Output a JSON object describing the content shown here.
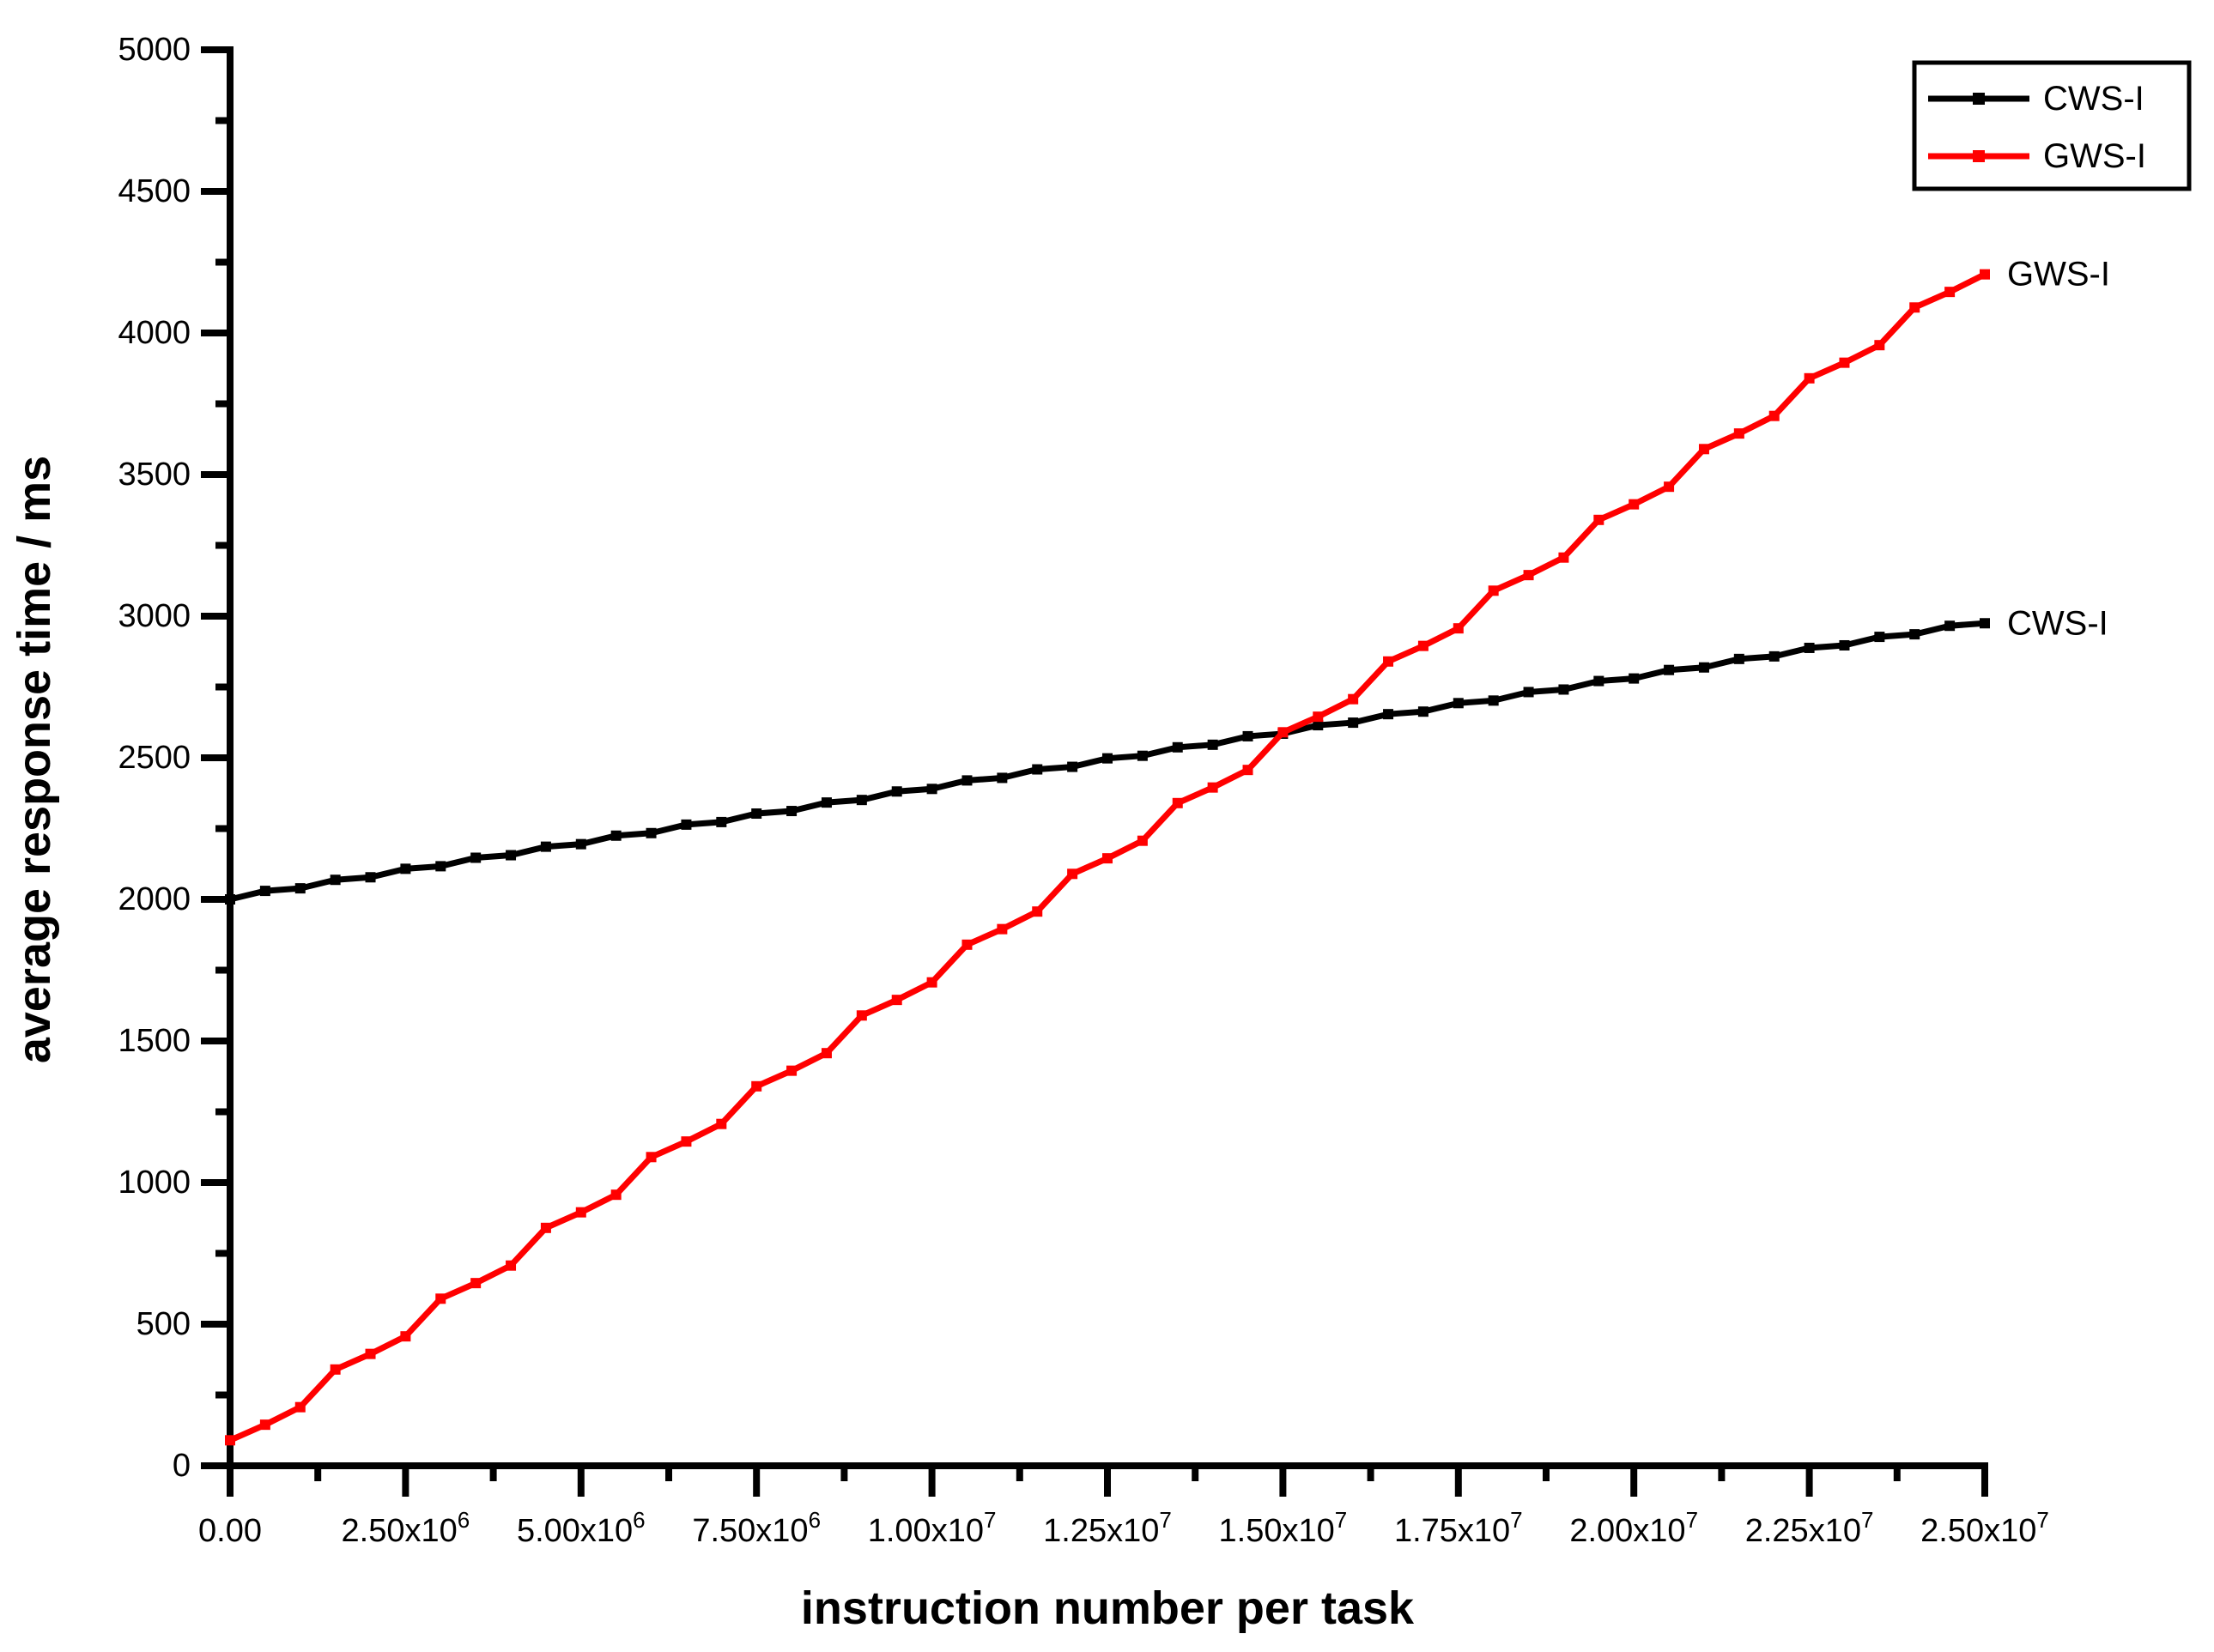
{
  "chart_data": {
    "type": "line",
    "title": "",
    "xlabel": "instruction number per task",
    "ylabel": "average response time / ms",
    "xlim": [
      0,
      25000000
    ],
    "ylim": [
      0,
      5000
    ],
    "x_start": 0,
    "x_step": 500000,
    "x_tick_step": 2500000,
    "x_minor_tick_step": 1250000,
    "y_tick_step": 500,
    "y_minor_tick_step": 250,
    "grid": false,
    "axis_color": "#000000",
    "background_color": "#ffffff",
    "legend_position": "top-right",
    "x_tick_labels": [
      "0.00",
      "2.50x10^6",
      "5.00x10^6",
      "7.50x10^6",
      "1.00x10^7",
      "1.25x10^7",
      "1.50x10^7",
      "1.75x10^7",
      "2.00x10^7",
      "2.25x10^7",
      "2.50x10^7"
    ],
    "y_tick_labels": [
      "0",
      "500",
      "1000",
      "1500",
      "2000",
      "2500",
      "3000",
      "3500",
      "4000",
      "4500",
      "5000"
    ],
    "series": [
      {
        "name": "CWS-I",
        "color": "#000000",
        "values": [
          2000,
          2030,
          2039,
          2069,
          2078,
          2108,
          2117,
          2147,
          2156,
          2186,
          2195,
          2225,
          2234,
          2264,
          2273,
          2303,
          2312,
          2342,
          2351,
          2381,
          2390,
          2420,
          2429,
          2459,
          2468,
          2498,
          2507,
          2537,
          2546,
          2576,
          2585,
          2615,
          2624,
          2654,
          2663,
          2693,
          2702,
          2732,
          2741,
          2771,
          2780,
          2810,
          2819,
          2849,
          2858,
          2888,
          2897,
          2927,
          2936,
          2966,
          2975
        ]
      },
      {
        "name": "GWS-I",
        "color": "#ff0000",
        "values": [
          90,
          145,
          207,
          340,
          395,
          457,
          590,
          645,
          707,
          840,
          895,
          957,
          1090,
          1145,
          1207,
          1340,
          1395,
          1457,
          1590,
          1645,
          1707,
          1840,
          1895,
          1957,
          2090,
          2145,
          2207,
          2340,
          2395,
          2457,
          2590,
          2645,
          2707,
          2840,
          2895,
          2957,
          3090,
          3145,
          3207,
          3340,
          3395,
          3457,
          3590,
          3645,
          3707,
          3840,
          3895,
          3957,
          4090,
          4145,
          4207
        ]
      }
    ]
  }
}
